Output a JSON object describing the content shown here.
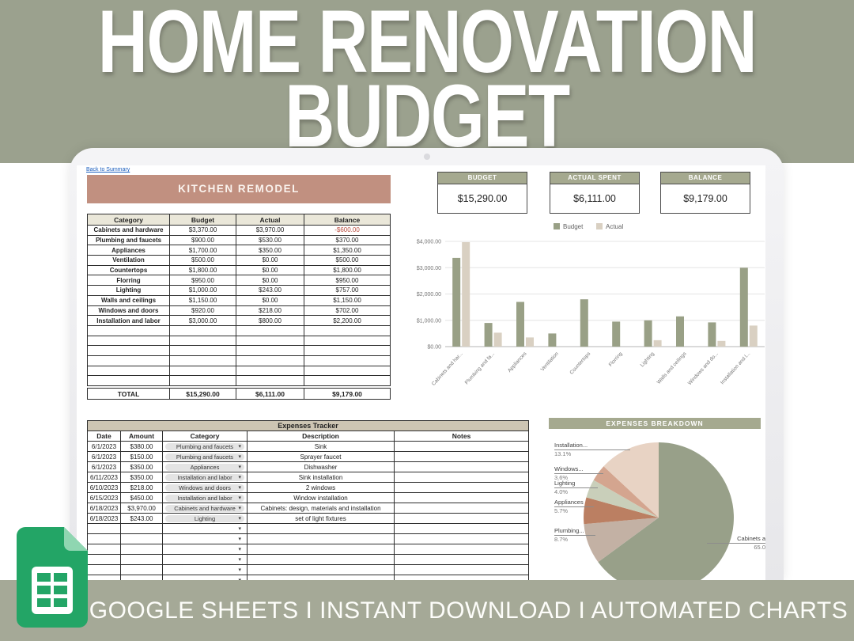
{
  "banner": {
    "line1": "HOME RENOVATION",
    "line2": "BUDGET"
  },
  "footer": {
    "text": "GOOGLE SHEETS I INSTANT DOWNLOAD I AUTOMATED CHARTS"
  },
  "sheet": {
    "back_link": "Back to Summary",
    "section_title": "KITCHEN REMODEL",
    "breakdown_title": "EXPENSES BREAKDOWN"
  },
  "summary_cards": [
    {
      "label": "BUDGET",
      "value": "$15,290.00"
    },
    {
      "label": "ACTUAL SPENT",
      "value": "$6,111.00"
    },
    {
      "label": "BALANCE",
      "value": "$9,179.00"
    }
  ],
  "budget_table": {
    "headers": [
      "Category",
      "Budget",
      "Actual",
      "Balance"
    ],
    "rows": [
      [
        "Cabinets and hardware",
        "$3,370.00",
        "$3,970.00",
        "-$600.00"
      ],
      [
        "Plumbing and faucets",
        "$900.00",
        "$530.00",
        "$370.00"
      ],
      [
        "Appliances",
        "$1,700.00",
        "$350.00",
        "$1,350.00"
      ],
      [
        "Ventilation",
        "$500.00",
        "$0.00",
        "$500.00"
      ],
      [
        "Countertops",
        "$1,800.00",
        "$0.00",
        "$1,800.00"
      ],
      [
        "Florring",
        "$950.00",
        "$0.00",
        "$950.00"
      ],
      [
        "Lighting",
        "$1,000.00",
        "$243.00",
        "$757.00"
      ],
      [
        "Walls and ceilings",
        "$1,150.00",
        "$0.00",
        "$1,150.00"
      ],
      [
        "Windows and doors",
        "$920.00",
        "$218.00",
        "$702.00"
      ],
      [
        "Installation and labor",
        "$3,000.00",
        "$800.00",
        "$2,200.00"
      ]
    ],
    "empty_rows": 6,
    "total": [
      "TOTAL",
      "$15,290.00",
      "$6,111.00",
      "$9,179.00"
    ]
  },
  "expenses_tracker": {
    "title": "Expenses Tracker",
    "headers": [
      "Date",
      "Amount",
      "Category",
      "Description",
      "Notes"
    ],
    "rows": [
      {
        "date": "6/1/2023",
        "amount": "$380.00",
        "category": "Plumbing and faucets",
        "description": "Sink",
        "notes": ""
      },
      {
        "date": "6/1/2023",
        "amount": "$150.00",
        "category": "Plumbing and faucets",
        "description": "Sprayer faucet",
        "notes": ""
      },
      {
        "date": "6/1/2023",
        "amount": "$350.00",
        "category": "Appliances",
        "description": "Dishwasher",
        "notes": ""
      },
      {
        "date": "6/11/2023",
        "amount": "$350.00",
        "category": "Installation and labor",
        "description": "Sink installation",
        "notes": ""
      },
      {
        "date": "6/10/2023",
        "amount": "$218.00",
        "category": "Windows and doors",
        "description": "2 windows",
        "notes": ""
      },
      {
        "date": "6/15/2023",
        "amount": "$450.00",
        "category": "Installation and labor",
        "description": "Window installation",
        "notes": ""
      },
      {
        "date": "6/18/2023",
        "amount": "$3,970.00",
        "category": "Cabinets and hardware",
        "description": "Cabinets: design, materials and installation",
        "notes": ""
      },
      {
        "date": "6/18/2023",
        "amount": "$243.00",
        "category": "Lighting",
        "description": "set of light fixtures",
        "notes": ""
      }
    ],
    "empty_rows": 6
  },
  "chart_data": [
    {
      "type": "bar",
      "title": "",
      "categories": [
        "Cabinets and hardware",
        "Plumbing and faucets",
        "Appliances",
        "Ventilation",
        "Countertops",
        "Florring",
        "Lighting",
        "Walls and ceilings",
        "Windows and doors",
        "Installation and labor"
      ],
      "x_tick_labels": [
        "Cabinets and har...",
        "Plumbing and fa...",
        "Appliances",
        "Ventilation",
        "Countertops",
        "Florring",
        "Lighting",
        "Walls and ceilings",
        "Windows and do...",
        "Installation and l..."
      ],
      "series": [
        {
          "name": "Budget",
          "color": "#99a086",
          "values": [
            3370,
            900,
            1700,
            500,
            1800,
            950,
            1000,
            1150,
            920,
            3000
          ]
        },
        {
          "name": "Actual",
          "color": "#d9d0c2",
          "values": [
            3970,
            530,
            350,
            0,
            0,
            0,
            243,
            0,
            218,
            800
          ]
        }
      ],
      "ylim": [
        0,
        4000
      ],
      "y_ticks": [
        "$0.00",
        "$1,000.00",
        "$2,000.00",
        "$3,000.00",
        "$4,000.00"
      ],
      "legend_position": "top",
      "grid": true
    },
    {
      "type": "pie",
      "title": "EXPENSES BREAKDOWN",
      "slices": [
        {
          "label": "Cabinets a",
          "pct_label": "65.0",
          "value": 65.0,
          "color": "#98a089"
        },
        {
          "label": "Plumbing...",
          "pct_label": "8.7%",
          "value": 8.7,
          "color": "#c3b1a4"
        },
        {
          "label": "Appliances",
          "pct_label": "5.7%",
          "value": 5.7,
          "color": "#bb7f62"
        },
        {
          "label": "Lighting",
          "pct_label": "4.0%",
          "value": 4.0,
          "color": "#c9cfba"
        },
        {
          "label": "Windows...",
          "pct_label": "3.6%",
          "value": 3.6,
          "color": "#d4a58f"
        },
        {
          "label": "Installation...",
          "pct_label": "13.1%",
          "value": 13.1,
          "color": "#e8d3c4"
        }
      ]
    }
  ],
  "colors": {
    "banner_bg": "#9ba18e",
    "footer_bg": "#a5a997",
    "section_header": "#c19080",
    "olive_header": "#a5a98f",
    "tracker_title_bg": "#cdc5b3",
    "table_header_bg": "#eae7d9",
    "negative": "#b94a3c",
    "link": "#1a5dbe",
    "sheets_green": "#23a566"
  }
}
